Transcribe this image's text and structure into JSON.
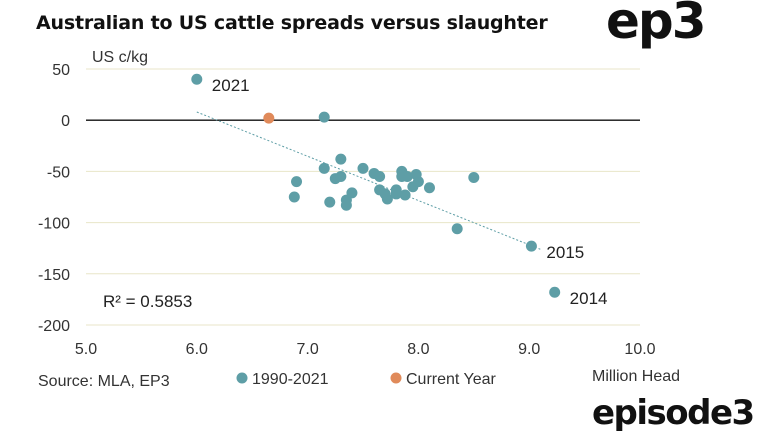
{
  "header": {
    "title": "Australian to US cattle spreads versus slaughter",
    "logo_top": "ep3",
    "logo_bottom": "episode3"
  },
  "source": "Source: MLA, EP3",
  "colors": {
    "series_1990_2021": "#5e9ea6",
    "current_year": "#e08a5a",
    "grid": "#e8e6c8",
    "zero_line": "#111111",
    "trendline": "#5e9ea6"
  },
  "chart_data": {
    "type": "scatter",
    "title": "Australian to US cattle spreads versus slaughter",
    "ylabel": "US c/kg",
    "xlabel": "Million Head",
    "xlim": [
      5.0,
      10.0
    ],
    "ylim": [
      -200,
      50
    ],
    "xticks": [
      "5.0",
      "6.0",
      "7.0",
      "8.0",
      "9.0",
      "10.0"
    ],
    "yticks": [
      "50",
      "0",
      "-50",
      "-100",
      "-150",
      "-200"
    ],
    "grid": "horizontal",
    "legend_position": "bottom",
    "series": [
      {
        "name": "1990-2021",
        "color": "#5e9ea6",
        "points": [
          [
            6.0,
            40
          ],
          [
            7.15,
            3
          ],
          [
            7.15,
            -47
          ],
          [
            7.3,
            -38
          ],
          [
            7.25,
            -57
          ],
          [
            7.3,
            -55
          ],
          [
            7.5,
            -47
          ],
          [
            7.6,
            -52
          ],
          [
            7.65,
            -55
          ],
          [
            7.65,
            -68
          ],
          [
            7.7,
            -72
          ],
          [
            7.72,
            -77
          ],
          [
            7.8,
            -68
          ],
          [
            7.8,
            -72
          ],
          [
            7.85,
            -50
          ],
          [
            7.85,
            -55
          ],
          [
            7.88,
            -73
          ],
          [
            7.9,
            -55
          ],
          [
            7.95,
            -65
          ],
          [
            7.98,
            -53
          ],
          [
            8.0,
            -60
          ],
          [
            8.1,
            -66
          ],
          [
            8.5,
            -56
          ],
          [
            6.9,
            -60
          ],
          [
            6.88,
            -75
          ],
          [
            7.2,
            -80
          ],
          [
            7.35,
            -78
          ],
          [
            7.35,
            -83
          ],
          [
            7.4,
            -71
          ],
          [
            8.35,
            -106
          ],
          [
            9.02,
            -123
          ],
          [
            9.23,
            -168
          ]
        ]
      },
      {
        "name": "Current Year",
        "color": "#e08a5a",
        "points": [
          [
            6.65,
            2
          ]
        ]
      }
    ],
    "trendline": {
      "from": [
        6.0,
        8
      ],
      "to": [
        9.1,
        -126
      ]
    },
    "r_squared_label": "R² = 0.5853",
    "annotations": [
      {
        "text": "2021",
        "x": 6.0,
        "y": 40
      },
      {
        "text": "2015",
        "x": 9.02,
        "y": -123
      },
      {
        "text": "2014",
        "x": 9.23,
        "y": -168
      }
    ]
  }
}
